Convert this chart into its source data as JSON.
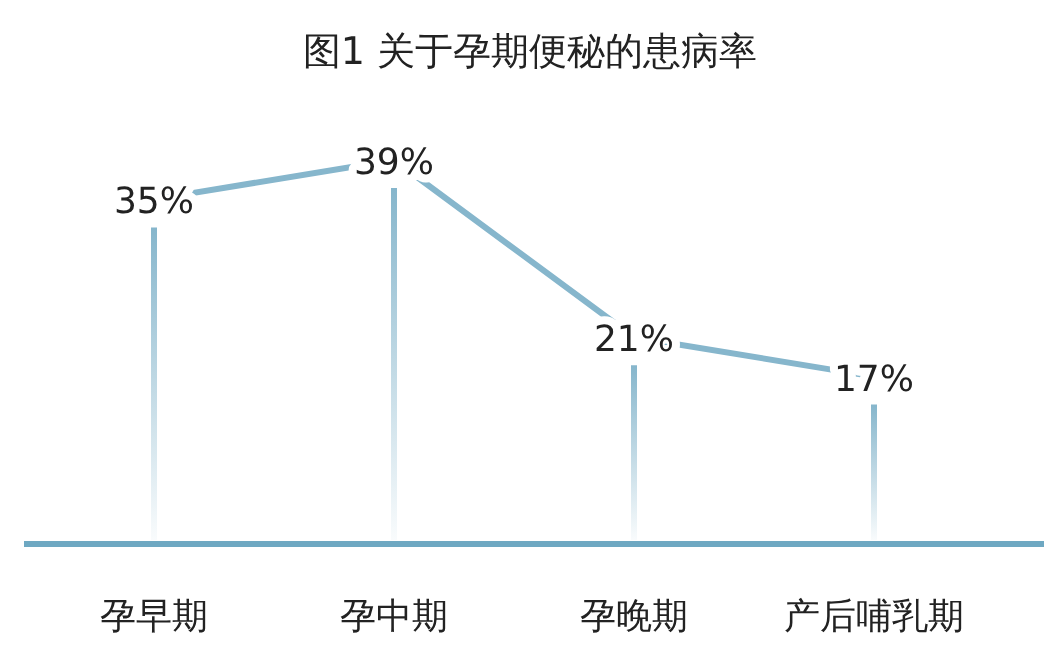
{
  "chart_data": {
    "type": "line",
    "title": "图1  关于孕期便秘的患病率",
    "categories": [
      "孕早期",
      "孕中期",
      "孕晚期",
      "产后哺乳期"
    ],
    "values": [
      35,
      39,
      21,
      17
    ],
    "color": "#86b6cc",
    "value_labels": [
      "35%",
      "39%",
      "21%",
      "17%"
    ]
  }
}
